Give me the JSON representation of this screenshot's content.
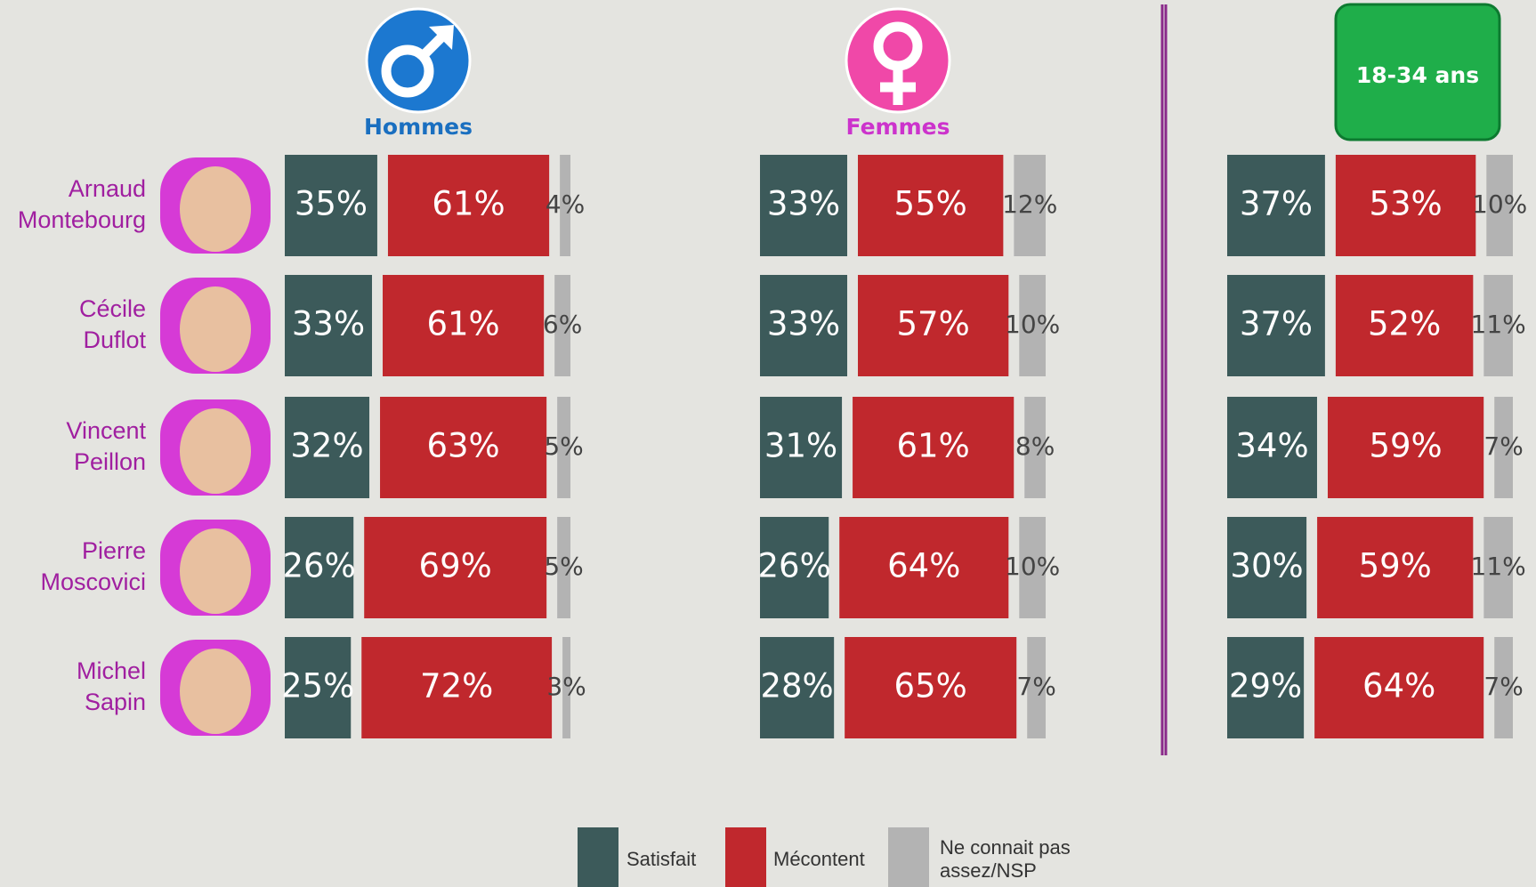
{
  "chart_data": {
    "type": "bar",
    "orientation": "horizontal",
    "stacked": true,
    "categories": [
      "Arnaud Montebourg",
      "Cécile Duflot",
      "Vincent Peillon",
      "Pierre Moscovici",
      "Michel Sapin"
    ],
    "legend": [
      {
        "name": "Satisfait",
        "color": "#3c5a5a"
      },
      {
        "name": "Mécontent",
        "color": "#c0282d"
      },
      {
        "name": "Ne connait pas assez/NSP",
        "color": "#b3b3b3"
      }
    ],
    "panels": [
      {
        "title": "Hommes",
        "title_color": "#1a6fc0",
        "series": [
          {
            "values": [
              35,
              33,
              32,
              26,
              25
            ],
            "value_labels": [
              "35%",
              "33%",
              "32%",
              "26%",
              "25%"
            ]
          },
          {
            "values": [
              61,
              61,
              63,
              69,
              72
            ],
            "value_labels": [
              "61%",
              "61%",
              "63%",
              "69%",
              "72%"
            ]
          },
          {
            "values": [
              4,
              6,
              5,
              5,
              3
            ],
            "value_labels": [
              "4%",
              "6%",
              "5%",
              "5%",
              "3%"
            ]
          }
        ]
      },
      {
        "title": "Femmes",
        "title_color": "#cc33cc",
        "series": [
          {
            "values": [
              33,
              33,
              31,
              26,
              28
            ],
            "value_labels": [
              "33%",
              "33%",
              "31%",
              "26%",
              "28%"
            ]
          },
          {
            "values": [
              55,
              57,
              61,
              64,
              65
            ],
            "value_labels": [
              "55%",
              "57%",
              "61%",
              "64%",
              "65%"
            ]
          },
          {
            "values": [
              12,
              10,
              8,
              10,
              7
            ],
            "value_labels": [
              "12%",
              "10%",
              "8%",
              "10%",
              "7%"
            ]
          }
        ]
      },
      {
        "title": "18-34 ans",
        "title_color": "#ffffff",
        "series": [
          {
            "values": [
              37,
              37,
              34,
              30,
              29
            ],
            "value_labels": [
              "37%",
              "37%",
              "34%",
              "30%",
              "29%"
            ]
          },
          {
            "values": [
              53,
              52,
              59,
              59,
              64
            ],
            "value_labels": [
              "53%",
              "52%",
              "59%",
              "59%",
              "64%"
            ]
          },
          {
            "values": [
              10,
              11,
              7,
              11,
              7
            ],
            "value_labels": [
              "10%",
              "11%",
              "7%",
              "11%",
              "7%"
            ]
          }
        ]
      }
    ]
  }
}
